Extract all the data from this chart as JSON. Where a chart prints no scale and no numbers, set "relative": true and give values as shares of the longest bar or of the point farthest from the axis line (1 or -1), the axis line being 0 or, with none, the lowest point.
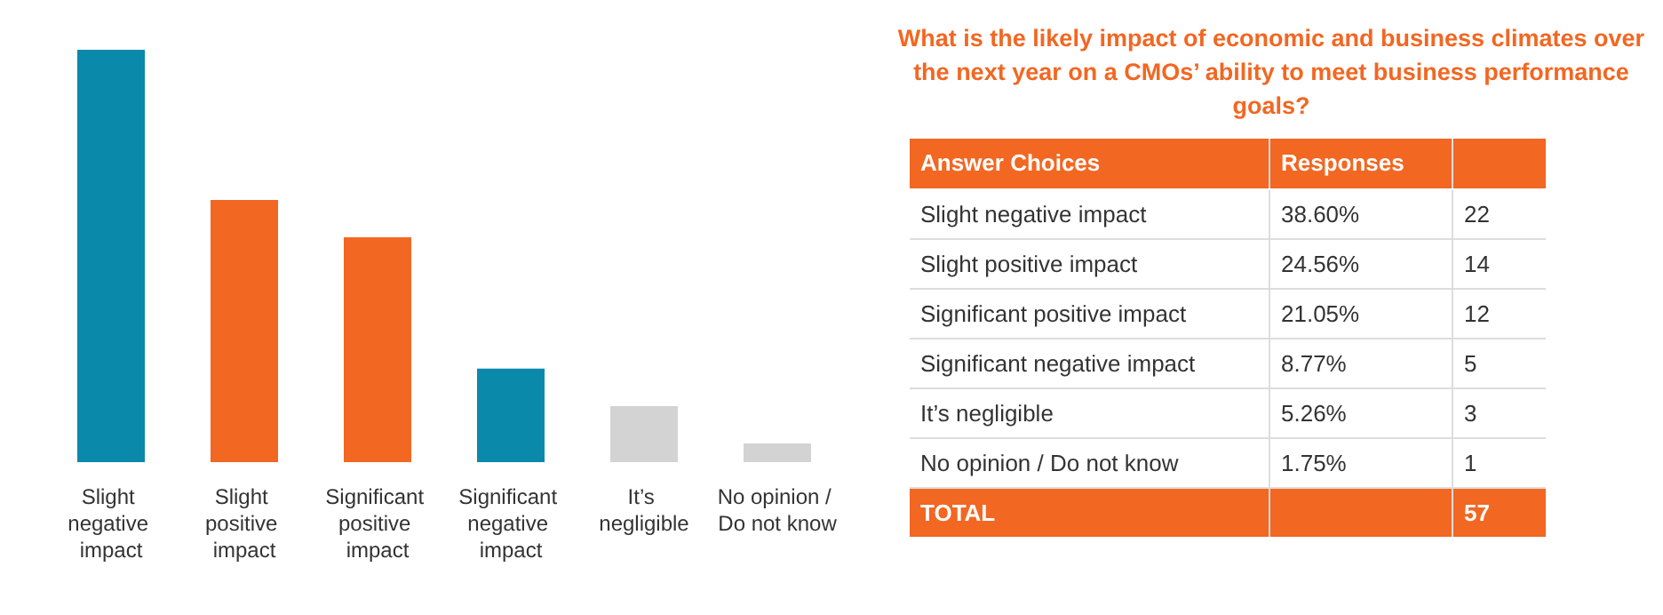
{
  "chart_data": [
    {
      "type": "bar",
      "relative": true,
      "categories": [
        "Slight negative impact",
        "Slight positive impact",
        "Significant positive impact",
        "Significant negative impact",
        "It’s negligible",
        "No opinion / Do not know"
      ],
      "values": [
        1,
        0.636,
        0.545,
        0.227,
        0.136,
        0.045
      ],
      "colors": [
        "#0a89ab",
        "#f26722",
        "#f26722",
        "#0a89ab",
        "#d3d3d3",
        "#d3d3d3"
      ]
    },
    {
      "type": "other",
      "title": "What is the likely impact of economic and business climates over the next year on a CMOs’ ability to meet business performance goals?",
      "annotations": [
        "Answer Choices",
        "Responses",
        "Slight negative impact",
        "38.60%",
        "22",
        "Slight positive impact",
        "24.56%",
        "14",
        "Significant positive impact",
        "21.05%",
        "12",
        "Significant negative impact",
        "8.77%",
        "5",
        "It’s negligible",
        "5.26%",
        "3",
        "No opinion / Do not know",
        "1.75%",
        "1",
        "TOTAL",
        "57"
      ]
    }
  ]
}
